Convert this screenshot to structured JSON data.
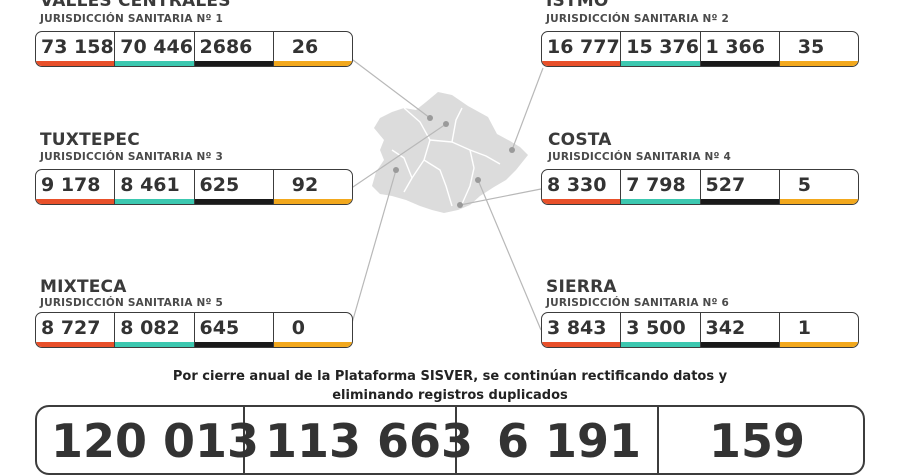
{
  "colors": {
    "orange_red": "#e8502a",
    "teal": "#3cc8b0",
    "black": "#1a1a1a",
    "yellow": "#f2a81d",
    "map_fill": "#dcdcdc"
  },
  "regions": [
    {
      "name": "VALLES CENTRALES",
      "sub": "JURISDICCIÓN SANITARIA Nº 1",
      "values": [
        "73 158",
        "70 446",
        "2686",
        "26"
      ]
    },
    {
      "name": "ISTMO",
      "sub": "JURISDICCIÓN SANITARIA Nº 2",
      "values": [
        "16 777",
        "15 376",
        "1 366",
        "35"
      ]
    },
    {
      "name": "TUXTEPEC",
      "sub": "JURISDICCIÓN SANITARIA Nº 3",
      "values": [
        "9 178",
        "8 461",
        "625",
        "92"
      ]
    },
    {
      "name": "COSTA",
      "sub": "JURISDICCIÓN SANITARIA Nº 4",
      "values": [
        "8 330",
        "7 798",
        "527",
        "5"
      ]
    },
    {
      "name": "MIXTECA",
      "sub": "JURISDICCIÓN SANITARIA Nº 5",
      "values": [
        "8 727",
        "8 082",
        "645",
        "0"
      ]
    },
    {
      "name": "SIERRA",
      "sub": "JURISDICCIÓN SANITARIA Nº 6",
      "values": [
        "3 843",
        "3 500",
        "342",
        "1"
      ]
    }
  ],
  "note": {
    "line1": "Por cierre anual de la Plataforma SISVER, se continúan rectificando datos y",
    "line2": "eliminando registros duplicados"
  },
  "totals": [
    "120 013",
    "113 663",
    "6 191",
    "159"
  ]
}
